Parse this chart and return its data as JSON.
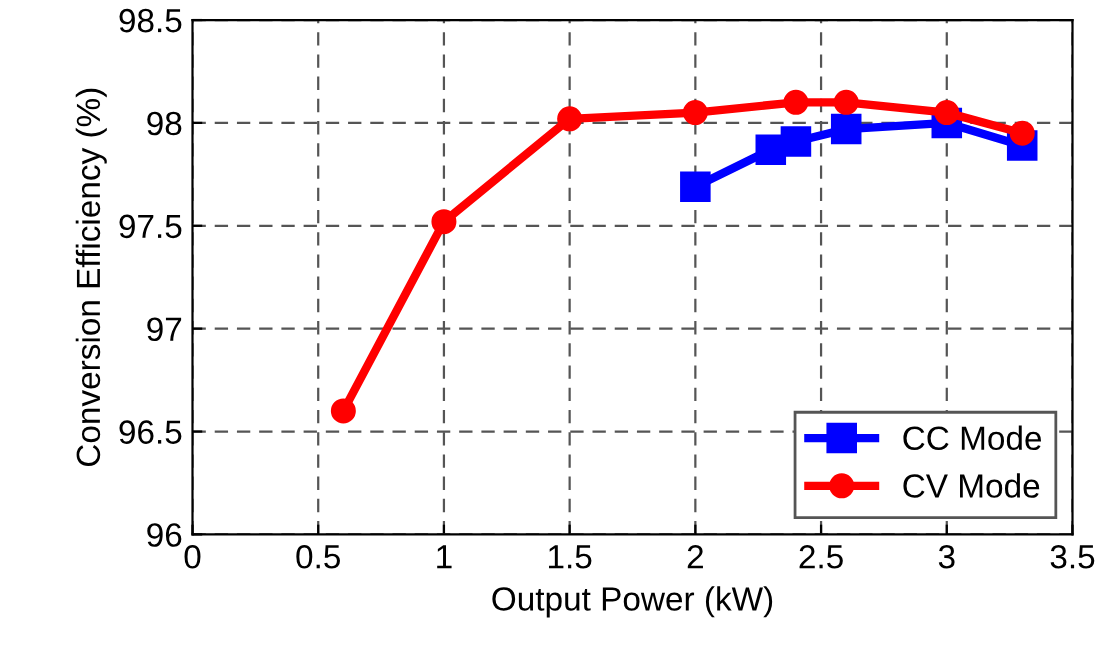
{
  "chart_data": {
    "type": "line",
    "xlabel": "Output Power (kW)",
    "ylabel": "Conversion Efficiency (%)",
    "xlim": [
      0,
      3.5
    ],
    "xticks": [
      0,
      0.5,
      1,
      1.5,
      2,
      2.5,
      3,
      3.5
    ],
    "ylim": [
      96,
      98.5
    ],
    "yticks": [
      96,
      96.5,
      97,
      97.5,
      98,
      98.5
    ],
    "grid": true,
    "legend": "bottom right",
    "series": [
      {
        "name": "CC Mode",
        "color": "#0000ff",
        "marker": "square",
        "x": [
          2,
          2.3,
          2.4,
          2.6,
          3,
          3.3
        ],
        "values": [
          97.69,
          97.87,
          97.91,
          97.97,
          98.0,
          97.89
        ]
      },
      {
        "name": "CV Mode",
        "color": "#ff0000",
        "marker": "circle",
        "x": [
          0.6,
          1,
          1.5,
          2,
          2.4,
          2.6,
          3,
          3.3
        ],
        "values": [
          96.6,
          97.52,
          98.02,
          98.05,
          98.1,
          98.1,
          98.05,
          97.95
        ]
      }
    ]
  }
}
